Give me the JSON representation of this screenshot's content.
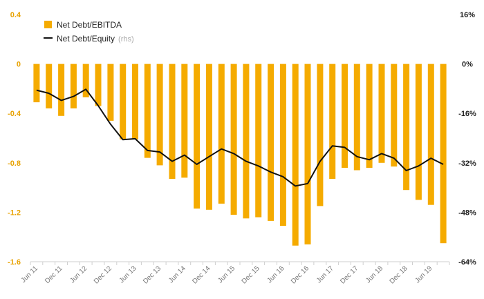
{
  "chart_data": {
    "type": "bar",
    "title": "",
    "xlabel": "",
    "ylabel": "",
    "ylim_left": [
      -1.6,
      0.4
    ],
    "ylim_right": [
      -64,
      16
    ],
    "yticks_left": [
      "0.4",
      "0",
      "-0.4",
      "-0.8",
      "-1.2",
      "-1.6"
    ],
    "yticks_right": [
      "16%",
      "0%",
      "-16%",
      "-32%",
      "-48%",
      "-64%"
    ],
    "x_tick_labels": [
      "Jun 11",
      "Dec 11",
      "Jun 12",
      "Dec 12",
      "Jun 13",
      "Dec 13",
      "Jun 14",
      "Dec 14",
      "Jun 15",
      "Dec 15",
      "Jun 16",
      "Dec 16",
      "Jun 17",
      "Dec 17",
      "Jun 18",
      "Dec 18",
      "Jun 19"
    ],
    "periods": [
      "Jun 11",
      "Sep 11",
      "Dec 11",
      "Mar 12",
      "Jun 12",
      "Sep 12",
      "Dec 12",
      "Mar 13",
      "Jun 13",
      "Sep 13",
      "Dec 13",
      "Mar 14",
      "Jun 14",
      "Sep 14",
      "Dec 14",
      "Mar 15",
      "Jun 15",
      "Sep 15",
      "Dec 15",
      "Mar 16",
      "Jun 16",
      "Sep 16",
      "Dec 16",
      "Mar 17",
      "Jun 17",
      "Sep 17",
      "Dec 17",
      "Mar 18",
      "Jun 18",
      "Sep 18",
      "Dec 18",
      "Mar 19",
      "Jun 19",
      "Sep 19"
    ],
    "series": [
      {
        "name": "Net Debt/EBITDA",
        "kind": "bar",
        "axis": "left",
        "color": "#f5ab00",
        "values": [
          -0.31,
          -0.36,
          -0.42,
          -0.36,
          -0.27,
          -0.34,
          -0.46,
          -0.61,
          -0.61,
          -0.76,
          -0.82,
          -0.93,
          -0.92,
          -1.17,
          -1.18,
          -1.13,
          -1.22,
          -1.25,
          -1.24,
          -1.27,
          -1.31,
          -1.47,
          -1.46,
          -1.15,
          -0.93,
          -0.84,
          -0.86,
          -0.84,
          -0.8,
          -0.83,
          -1.02,
          -1.1,
          -1.14,
          -1.45
        ]
      },
      {
        "name": "Net Debt/Equity",
        "name_suffix": "(rhs)",
        "kind": "line",
        "axis": "right",
        "color": "#111111",
        "values": [
          -8.5,
          -9.5,
          -11.8,
          -10.5,
          -8.2,
          -13.5,
          -19.5,
          -24.5,
          -24.2,
          -28.0,
          -28.5,
          -31.5,
          -29.5,
          -32.5,
          -30.0,
          -27.5,
          -29.0,
          -31.5,
          -33.0,
          -35.0,
          -36.5,
          -39.5,
          -38.7,
          -31.5,
          -26.5,
          -27.0,
          -30.0,
          -31.0,
          -29.0,
          -30.5,
          -34.5,
          -33.0,
          -30.5,
          -32.5
        ]
      }
    ],
    "legend_position": "top-left",
    "grid": false
  }
}
